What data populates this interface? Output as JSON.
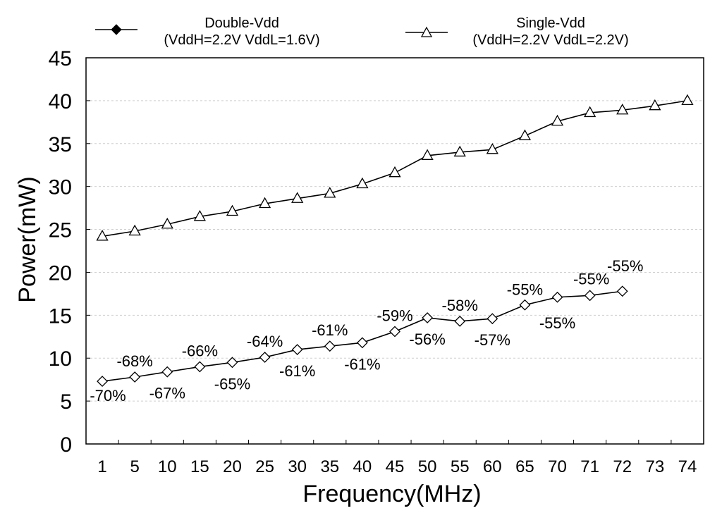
{
  "chart_data": {
    "type": "line",
    "xlabel": "Frequency(MHz)",
    "ylabel": "Power(mW)",
    "ylim": [
      0,
      45
    ],
    "yticks": [
      "0",
      "5",
      "10",
      "15",
      "20",
      "25",
      "30",
      "35",
      "40",
      "45"
    ],
    "categories": [
      "1",
      "5",
      "10",
      "15",
      "20",
      "25",
      "30",
      "35",
      "40",
      "45",
      "50",
      "55",
      "60",
      "65",
      "70",
      "71",
      "72",
      "73",
      "74"
    ],
    "grid": true,
    "legend_position": "top",
    "series": [
      {
        "name": "Double-Vdd",
        "legend_lines": [
          "Double-Vdd",
          "(VddH=2.2V VddL=1.6V)"
        ],
        "marker": "diamond",
        "values": [
          7.3,
          7.8,
          8.4,
          9.0,
          9.5,
          10.1,
          11.0,
          11.4,
          11.8,
          13.1,
          14.7,
          14.3,
          14.6,
          16.2,
          17.1,
          17.3,
          17.8,
          null,
          null
        ],
        "labels": [
          "-70%",
          "-68%",
          "-67%",
          "-66%",
          "-65%",
          "-64%",
          "-61%",
          "-61%",
          "-61%",
          "-59%",
          "-56%",
          "-58%",
          "-57%",
          "-55%",
          "-55%",
          "-55%",
          "-55%",
          null,
          null
        ]
      },
      {
        "name": "Single-Vdd",
        "legend_lines": [
          "Single-Vdd",
          "(VddH=2.2V VddL=2.2V)"
        ],
        "marker": "triangle",
        "values": [
          24.2,
          24.8,
          25.6,
          26.5,
          27.1,
          28.0,
          28.6,
          29.2,
          30.3,
          31.6,
          33.6,
          34.0,
          34.3,
          35.9,
          37.6,
          38.6,
          38.9,
          39.4,
          40.0
        ]
      }
    ]
  }
}
